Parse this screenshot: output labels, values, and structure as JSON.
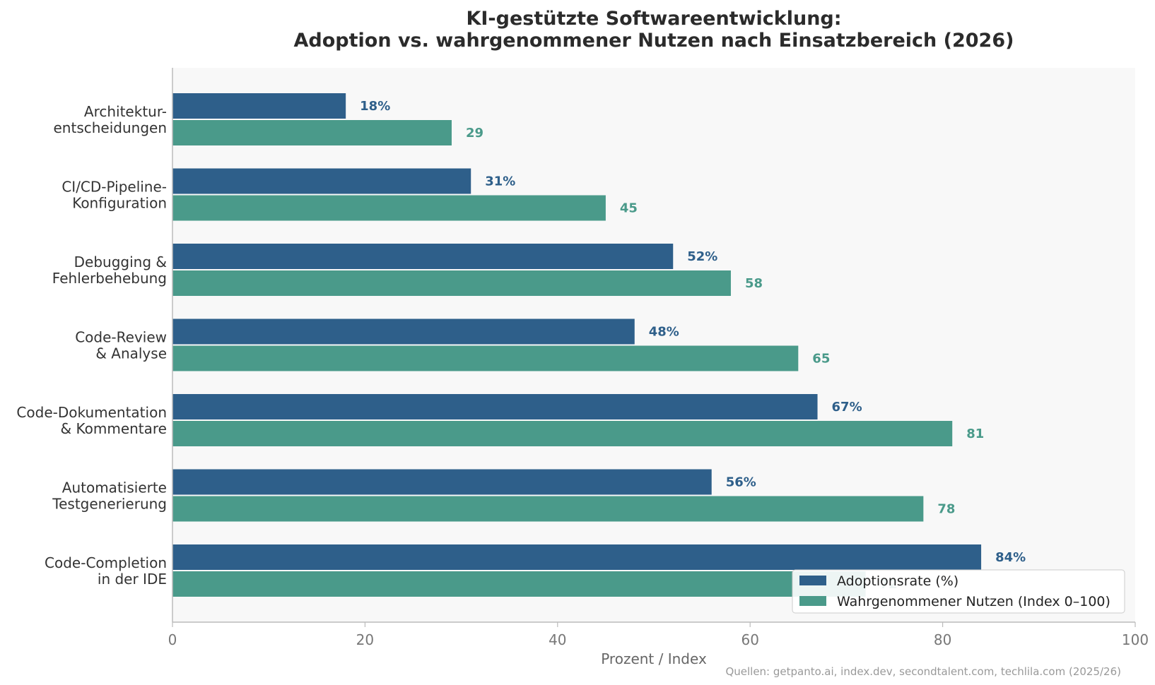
{
  "chart_data": {
    "type": "bar",
    "orientation": "horizontal",
    "title_line1": "KI-gestützte Softwareentwicklung:",
    "title_line2": "Adoption vs. wahrgenommener Nutzen nach Einsatzbereich (2026)",
    "xlabel": "Prozent / Index",
    "ylabel": "",
    "xlim": [
      0,
      100
    ],
    "xticks": [
      "0",
      "20",
      "40",
      "60",
      "80",
      "100"
    ],
    "categories": [
      {
        "lines": [
          "Architektur-",
          "entscheidungen"
        ]
      },
      {
        "lines": [
          "CI/CD-Pipeline-",
          "Konfiguration"
        ]
      },
      {
        "lines": [
          "Debugging &",
          "Fehlerbehebung"
        ]
      },
      {
        "lines": [
          "Code-Review",
          "& Analyse"
        ]
      },
      {
        "lines": [
          "Code-Dokumentation",
          "& Kommentare"
        ]
      },
      {
        "lines": [
          "Automatisierte",
          "Testgenerierung"
        ]
      },
      {
        "lines": [
          "Code-Completion",
          "in der IDE"
        ]
      }
    ],
    "series": [
      {
        "name": "Adoptionsrate (%)",
        "color": "#2e5f8a",
        "values": [
          18,
          31,
          52,
          48,
          67,
          56,
          84
        ],
        "labels": [
          "18%",
          "31%",
          "52%",
          "48%",
          "67%",
          "56%",
          "84%"
        ]
      },
      {
        "name": "Wahrgenommener Nutzen (Index 0–100)",
        "color": "#4a9a8a",
        "values": [
          29,
          45,
          58,
          65,
          81,
          78,
          72
        ],
        "labels": [
          "29",
          "45",
          "58",
          "65",
          "81",
          "78",
          "72"
        ]
      }
    ],
    "legend_position": "bottom-right",
    "grid": false,
    "background": "#f8f8f8",
    "source": "Quellen: getpanto.ai, index.dev, secondtalent.com, techlila.com (2025/26)"
  }
}
